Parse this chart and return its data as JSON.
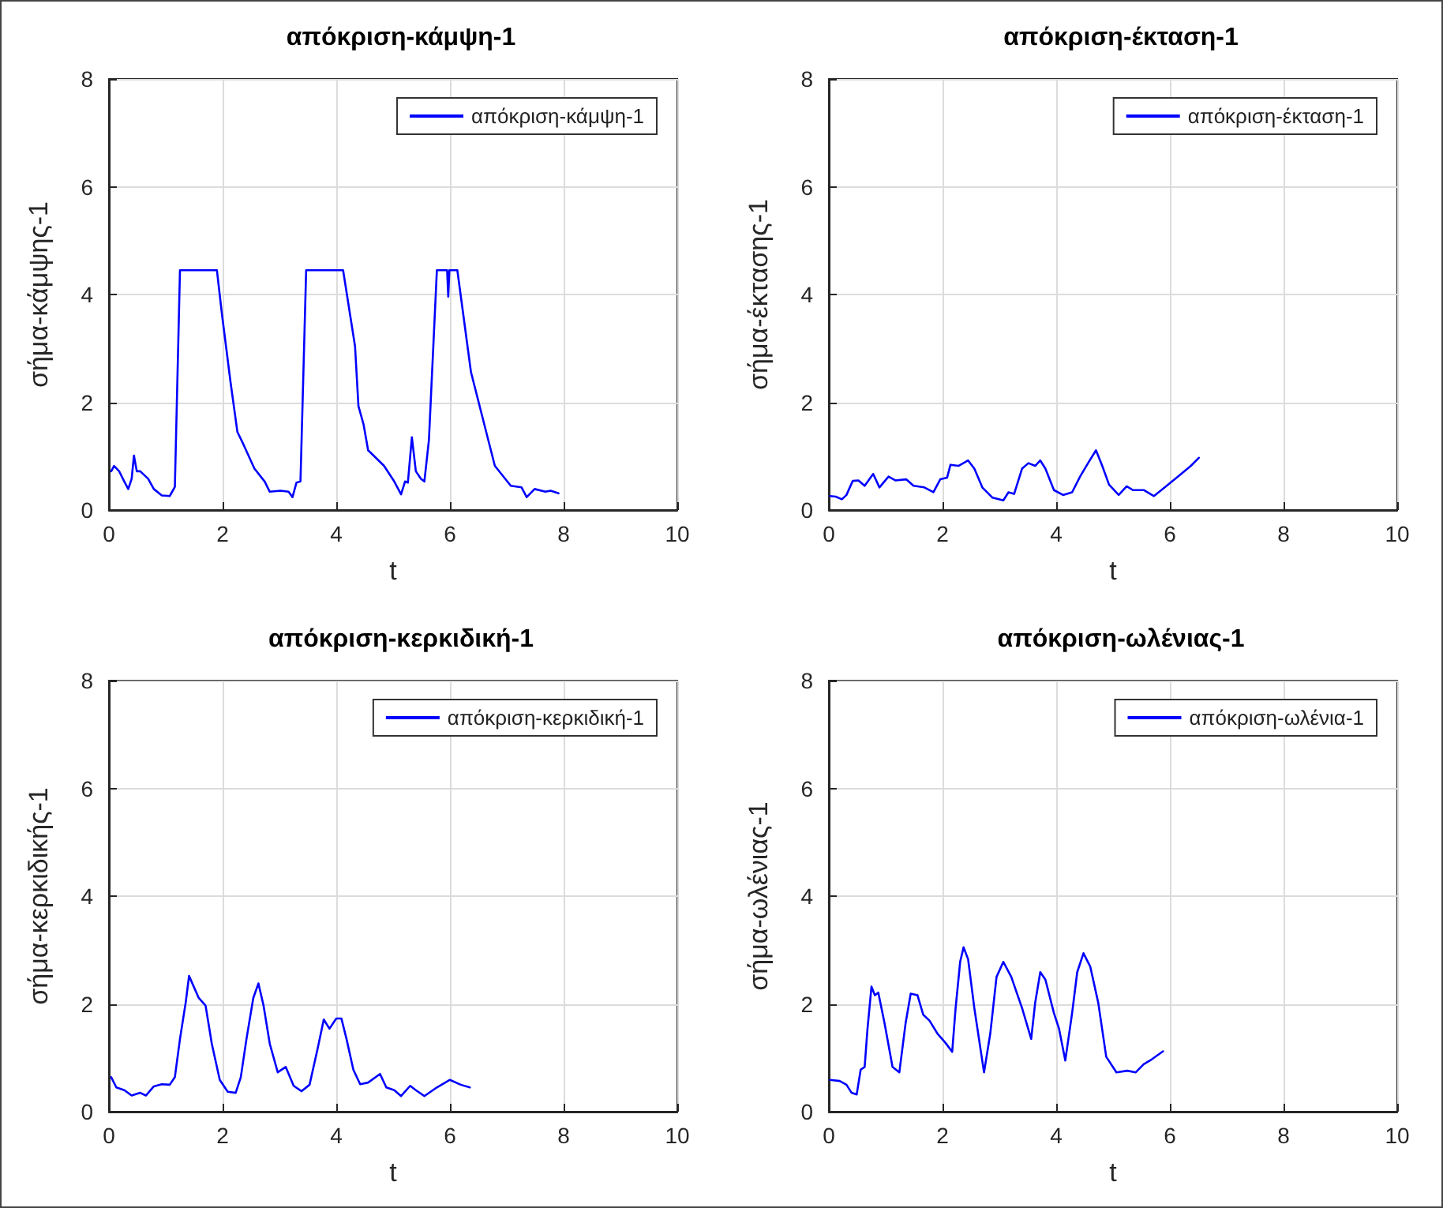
{
  "chart_data": [
    {
      "type": "line",
      "title": "απόκριση-κάμψη-1",
      "xlabel": "t",
      "ylabel": "σήμα-κάμψης-1",
      "xlim": [
        0,
        10
      ],
      "ylim": [
        0,
        8
      ],
      "xticks": [
        0,
        2,
        4,
        6,
        8,
        10
      ],
      "yticks": [
        0,
        2,
        4,
        6,
        8
      ],
      "grid": true,
      "legend": "top right",
      "marker": "none",
      "line_style": "solid",
      "x": [
        0.04,
        0.09,
        0.18,
        0.27,
        0.34,
        0.4,
        0.44,
        0.49,
        0.55,
        0.69,
        0.79,
        0.93,
        1.07,
        1.16,
        1.25,
        1.9,
        1.99,
        2.14,
        2.26,
        2.37,
        2.56,
        2.74,
        2.83,
        3.02,
        3.16,
        3.23,
        3.3,
        3.37,
        3.47,
        4.12,
        4.33,
        4.39,
        4.48,
        4.56,
        4.84,
        5.02,
        5.14,
        5.21,
        5.26,
        5.33,
        5.4,
        5.49,
        5.55,
        5.63,
        5.77,
        5.95,
        5.97,
        5.99,
        6.13,
        6.37,
        6.65,
        6.79,
        7.07,
        7.26,
        7.35,
        7.49,
        7.68,
        7.77,
        7.91
      ],
      "series": [
        {
          "name": "απόκριση-κάμψη-1",
          "color": "#0000ff",
          "values": [
            0.72,
            0.82,
            0.72,
            0.53,
            0.39,
            0.58,
            1.01,
            0.72,
            0.72,
            0.58,
            0.39,
            0.27,
            0.26,
            0.43,
            4.45,
            4.45,
            3.62,
            2.37,
            1.45,
            1.21,
            0.77,
            0.53,
            0.34,
            0.36,
            0.34,
            0.24,
            0.51,
            0.53,
            4.45,
            4.45,
            3.04,
            1.93,
            1.59,
            1.11,
            0.82,
            0.53,
            0.29,
            0.53,
            0.51,
            1.35,
            0.72,
            0.58,
            0.53,
            1.3,
            4.45,
            4.45,
            3.96,
            4.45,
            4.45,
            2.56,
            1.4,
            0.82,
            0.45,
            0.42,
            0.24,
            0.39,
            0.34,
            0.36,
            0.31
          ]
        }
      ]
    },
    {
      "type": "line",
      "title": "απόκριση-έκταση-1",
      "xlabel": "t",
      "ylabel": "σήμα-έκτασης-1",
      "xlim": [
        0,
        10
      ],
      "ylim": [
        0,
        8
      ],
      "xticks": [
        0,
        2,
        4,
        6,
        8,
        10
      ],
      "yticks": [
        0,
        2,
        4,
        6,
        8
      ],
      "grid": true,
      "legend": "top right",
      "marker": "none",
      "line_style": "solid",
      "x": [
        0.02,
        0.12,
        0.23,
        0.31,
        0.42,
        0.52,
        0.63,
        0.78,
        0.89,
        1.05,
        1.17,
        1.36,
        1.49,
        1.68,
        1.84,
        1.96,
        2.08,
        2.14,
        2.28,
        2.45,
        2.56,
        2.7,
        2.88,
        3.07,
        3.16,
        3.26,
        3.4,
        3.51,
        3.63,
        3.72,
        3.81,
        3.96,
        4.12,
        4.28,
        4.42,
        4.56,
        4.7,
        4.81,
        4.93,
        5.1,
        5.24,
        5.35,
        5.54,
        5.72,
        5.91,
        6.14,
        6.37,
        6.51
      ],
      "series": [
        {
          "name": "απόκριση-έκταση-1",
          "color": "#0000ff",
          "values": [
            0.26,
            0.25,
            0.2,
            0.28,
            0.54,
            0.55,
            0.45,
            0.67,
            0.42,
            0.62,
            0.55,
            0.57,
            0.45,
            0.42,
            0.33,
            0.57,
            0.6,
            0.84,
            0.82,
            0.92,
            0.77,
            0.42,
            0.23,
            0.18,
            0.33,
            0.3,
            0.77,
            0.87,
            0.82,
            0.92,
            0.77,
            0.37,
            0.28,
            0.33,
            0.62,
            0.87,
            1.11,
            0.82,
            0.47,
            0.28,
            0.44,
            0.37,
            0.37,
            0.26,
            0.42,
            0.62,
            0.82,
            0.97
          ]
        }
      ]
    },
    {
      "type": "line",
      "title": "απόκριση-κερκιδική-1",
      "xlabel": "t",
      "ylabel": "σήμα-κερκιδικής-1",
      "xlim": [
        0,
        10
      ],
      "ylim": [
        0,
        8
      ],
      "xticks": [
        0,
        2,
        4,
        6,
        8,
        10
      ],
      "yticks": [
        0,
        2,
        4,
        6,
        8
      ],
      "grid": true,
      "legend": "top right",
      "marker": "none",
      "line_style": "solid",
      "x": [
        0.04,
        0.13,
        0.27,
        0.4,
        0.55,
        0.65,
        0.79,
        0.93,
        1.07,
        1.16,
        1.25,
        1.35,
        1.41,
        1.48,
        1.58,
        1.7,
        1.81,
        1.95,
        2.09,
        2.23,
        2.32,
        2.42,
        2.54,
        2.63,
        2.72,
        2.83,
        2.97,
        3.11,
        3.25,
        3.39,
        3.53,
        3.67,
        3.78,
        3.88,
        4.0,
        4.09,
        4.18,
        4.3,
        4.42,
        4.56,
        4.77,
        4.88,
        5.02,
        5.14,
        5.3,
        5.4,
        5.55,
        5.77,
        6.0,
        6.19,
        6.35
      ],
      "series": [
        {
          "name": "απόκριση-κερκιδική-1",
          "color": "#0000ff",
          "values": [
            0.64,
            0.45,
            0.4,
            0.3,
            0.35,
            0.3,
            0.47,
            0.51,
            0.5,
            0.64,
            1.35,
            2.02,
            2.52,
            2.35,
            2.11,
            1.97,
            1.26,
            0.59,
            0.37,
            0.35,
            0.64,
            1.35,
            2.11,
            2.38,
            1.97,
            1.26,
            0.73,
            0.83,
            0.48,
            0.38,
            0.5,
            1.16,
            1.71,
            1.54,
            1.73,
            1.73,
            1.35,
            0.78,
            0.51,
            0.54,
            0.7,
            0.45,
            0.4,
            0.29,
            0.48,
            0.4,
            0.29,
            0.45,
            0.59,
            0.5,
            0.45
          ]
        }
      ]
    },
    {
      "type": "line",
      "title": "απόκριση-ωλένιας-1",
      "xlabel": "t",
      "ylabel": "σήμα-ωλένιας-1",
      "xlim": [
        0,
        10
      ],
      "ylim": [
        0,
        8
      ],
      "xticks": [
        0,
        2,
        4,
        6,
        8,
        10
      ],
      "yticks": [
        0,
        2,
        4,
        6,
        8
      ],
      "grid": true,
      "legend": "top right",
      "marker": "none",
      "line_style": "solid",
      "x": [
        0.02,
        0.19,
        0.31,
        0.4,
        0.49,
        0.56,
        0.63,
        0.68,
        0.75,
        0.81,
        0.87,
        0.98,
        1.12,
        1.24,
        1.35,
        1.44,
        1.56,
        1.66,
        1.77,
        1.91,
        2.05,
        2.17,
        2.23,
        2.31,
        2.37,
        2.45,
        2.56,
        2.73,
        2.84,
        2.95,
        3.07,
        3.21,
        3.4,
        3.56,
        3.63,
        3.72,
        3.81,
        3.96,
        4.05,
        4.16,
        4.28,
        4.37,
        4.48,
        4.6,
        4.74,
        4.88,
        5.06,
        5.25,
        5.4,
        5.54,
        5.68,
        5.88
      ],
      "series": [
        {
          "name": "απόκριση-ωλένια-1",
          "color": "#0000ff",
          "values": [
            0.59,
            0.57,
            0.5,
            0.35,
            0.32,
            0.78,
            0.83,
            1.54,
            2.32,
            2.16,
            2.21,
            1.64,
            0.83,
            0.73,
            1.64,
            2.19,
            2.16,
            1.8,
            1.69,
            1.45,
            1.28,
            1.11,
            1.92,
            2.78,
            3.05,
            2.83,
            1.92,
            0.73,
            1.45,
            2.5,
            2.78,
            2.5,
            1.92,
            1.35,
            2.02,
            2.59,
            2.45,
            1.83,
            1.54,
            0.95,
            1.83,
            2.59,
            2.94,
            2.69,
            2.02,
            1.02,
            0.73,
            0.76,
            0.73,
            0.88,
            0.97,
            1.12
          ]
        }
      ]
    }
  ]
}
